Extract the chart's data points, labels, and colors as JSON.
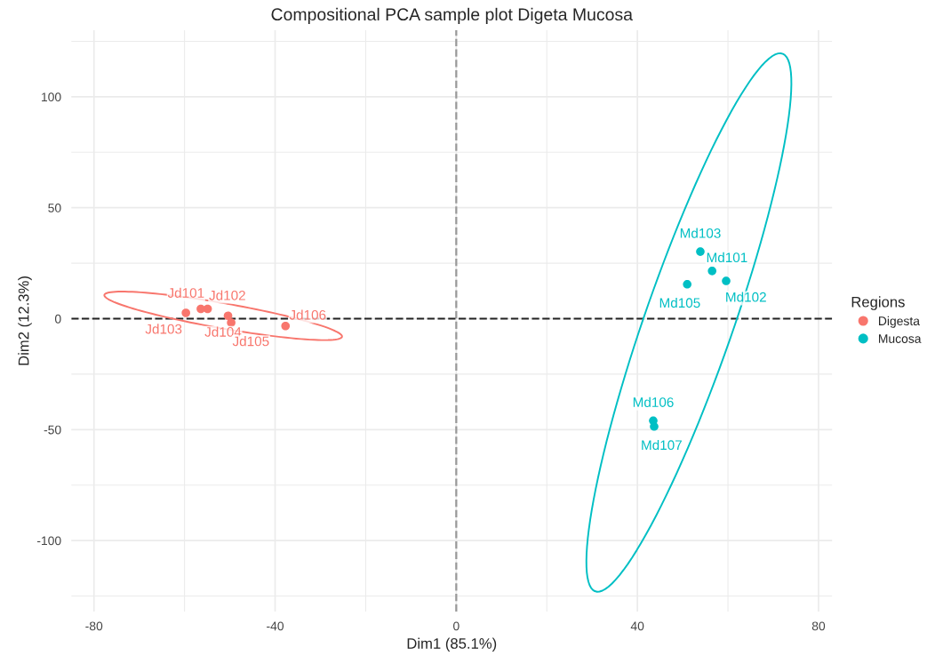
{
  "chart_data": {
    "type": "scatter",
    "title": "Compositional PCA sample plot Digeta Mucosa",
    "xlabel": "Dim1 (85.1%)",
    "ylabel": "Dim2 (12.3%)",
    "legend_title": "Regions",
    "legend": "right",
    "grid": true,
    "marker": "circle",
    "xlim": [
      -85,
      83
    ],
    "ylim": [
      -132,
      130
    ],
    "xticks": [
      -80,
      -40,
      0,
      40,
      80
    ],
    "yticks": [
      -100,
      -50,
      0,
      50,
      100
    ],
    "series": [
      {
        "name": "Digesta",
        "color": "#f8766d",
        "x": [
          -59.7,
          -56.4,
          -54.9,
          -50.4,
          -49.7,
          -37.7
        ],
        "values": [
          2.6,
          4.4,
          4.4,
          1.3,
          -1.8,
          -3.3
        ],
        "value_labels": [
          "Jd103",
          "Jd101",
          "Jd102",
          "Jd104",
          "Jd105",
          "Jd106"
        ]
      },
      {
        "name": "Mucosa",
        "color": "#00bfc4",
        "x": [
          53.9,
          56.5,
          59.6,
          51.0,
          43.5,
          43.7
        ],
        "values": [
          30.2,
          21.5,
          17.0,
          15.5,
          -46.0,
          -48.6
        ],
        "value_labels": [
          "Md103",
          "Md101",
          "Md102",
          "Md105",
          "Md106",
          "Md107"
        ]
      }
    ],
    "ref_lines": [
      {
        "axis": "x",
        "value": 0,
        "color": "#999999",
        "line_style": "dashed"
      },
      {
        "axis": "y",
        "value": 0,
        "color": "#222222",
        "line_style": "dashed"
      }
    ]
  }
}
